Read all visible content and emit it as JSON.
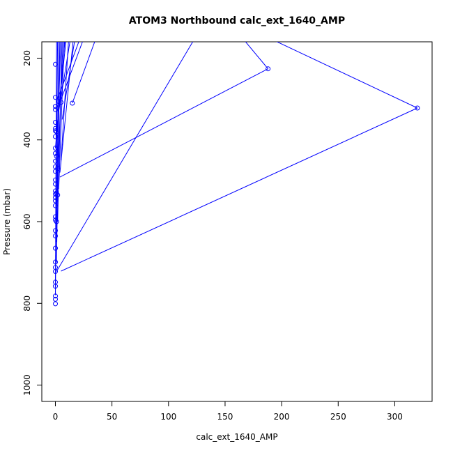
{
  "chart_data": {
    "type": "line",
    "title": "ATOM3 Northbound calc_ext_1640_AMP",
    "xlabel": "calc_ext_1640_AMP",
    "ylabel": "Pressure (mbar)",
    "xlim": [
      -12,
      333
    ],
    "ylim": [
      1040,
      160
    ],
    "y_reversed": true,
    "x_ticks": [
      0,
      50,
      100,
      150,
      200,
      250,
      300
    ],
    "y_ticks": [
      200,
      400,
      600,
      800,
      1000
    ],
    "grid": false,
    "legend": "none",
    "color": "#0000ff",
    "series": [
      {
        "x": [
          320,
          5
        ],
        "y": [
          322,
          721
        ]
      },
      {
        "x": [
          188,
          4
        ],
        "y": [
          226,
          491
        ]
      },
      {
        "x": [
          150,
          188
        ],
        "y": [
          100,
          226
        ]
      },
      {
        "x": [
          150,
          320
        ],
        "y": [
          100,
          322
        ]
      },
      {
        "x": [
          1,
          130
        ],
        "y": [
          722,
          120
        ]
      },
      {
        "x": [
          15,
          40
        ],
        "y": [
          310,
          120
        ]
      },
      {
        "x": [
          4,
          28
        ],
        "y": [
          308,
          130
        ]
      },
      {
        "x": [
          5,
          12
        ],
        "y": [
          450,
          140
        ]
      },
      {
        "x": [
          3,
          8
        ],
        "y": [
          520,
          140
        ]
      },
      {
        "x": [
          2,
          6
        ],
        "y": [
          600,
          140
        ]
      },
      {
        "x": [
          1,
          4
        ],
        "y": [
          700,
          140
        ]
      },
      {
        "x": [
          0,
          2
        ],
        "y": [
          780,
          140
        ]
      },
      {
        "x": [
          2,
          5
        ],
        "y": [
          400,
          140
        ]
      },
      {
        "x": [
          1,
          10
        ],
        "y": [
          380,
          140
        ]
      },
      {
        "x": [
          3,
          14
        ],
        "y": [
          330,
          140
        ]
      },
      {
        "x": [
          6,
          18
        ],
        "y": [
          350,
          140
        ]
      },
      {
        "x": [
          2,
          22
        ],
        "y": [
          300,
          150
        ]
      },
      {
        "x": [
          1,
          7
        ],
        "y": [
          560,
          140
        ]
      },
      {
        "x": [
          1,
          3
        ],
        "y": [
          650,
          140
        ]
      },
      {
        "x": [
          0,
          1
        ],
        "y": [
          760,
          140
        ]
      },
      {
        "x": [
          0,
          9
        ],
        "y": [
          420,
          140
        ]
      },
      {
        "x": [
          4,
          16
        ],
        "y": [
          480,
          150
        ]
      }
    ],
    "points": [
      {
        "x": 320,
        "y": 322
      },
      {
        "x": 188,
        "y": 226
      },
      {
        "x": 15,
        "y": 310
      },
      {
        "x": 5,
        "y": 308
      },
      {
        "x": 3,
        "y": 306
      },
      {
        "x": 0,
        "y": 215
      },
      {
        "x": 0,
        "y": 296
      },
      {
        "x": 0,
        "y": 318
      },
      {
        "x": 0,
        "y": 326
      },
      {
        "x": 0,
        "y": 357
      },
      {
        "x": 0,
        "y": 372
      },
      {
        "x": 0,
        "y": 378
      },
      {
        "x": 0,
        "y": 392
      },
      {
        "x": 0,
        "y": 420
      },
      {
        "x": 0,
        "y": 433
      },
      {
        "x": 0,
        "y": 452
      },
      {
        "x": 0,
        "y": 466
      },
      {
        "x": 0,
        "y": 477
      },
      {
        "x": 0,
        "y": 498
      },
      {
        "x": 0,
        "y": 508
      },
      {
        "x": 0,
        "y": 525
      },
      {
        "x": 0,
        "y": 533
      },
      {
        "x": 0,
        "y": 541
      },
      {
        "x": 0,
        "y": 549
      },
      {
        "x": 0,
        "y": 561
      },
      {
        "x": 0,
        "y": 588
      },
      {
        "x": 0,
        "y": 596
      },
      {
        "x": 0,
        "y": 622
      },
      {
        "x": 0,
        "y": 635
      },
      {
        "x": 0,
        "y": 665
      },
      {
        "x": 0,
        "y": 699
      },
      {
        "x": 0,
        "y": 712
      },
      {
        "x": 0,
        "y": 722
      },
      {
        "x": 0,
        "y": 748
      },
      {
        "x": 0,
        "y": 758
      },
      {
        "x": 0,
        "y": 782
      },
      {
        "x": 0,
        "y": 790
      },
      {
        "x": 0,
        "y": 801
      },
      {
        "x": 1,
        "y": 380
      },
      {
        "x": 1,
        "y": 440
      },
      {
        "x": 1,
        "y": 530
      },
      {
        "x": 1,
        "y": 600
      },
      {
        "x": 2,
        "y": 470
      },
      {
        "x": 2,
        "y": 535
      }
    ]
  }
}
